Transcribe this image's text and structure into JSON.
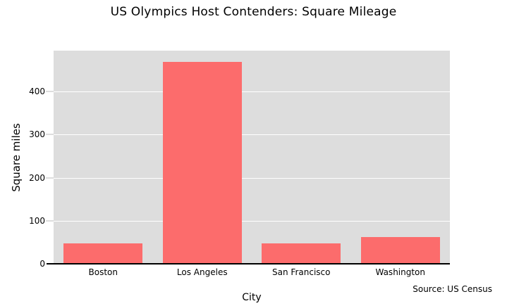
{
  "chart_data": {
    "type": "bar",
    "title": "US Olympics Host Contenders: Square Mileage",
    "categories": [
      "Boston",
      "Los Angeles",
      "San Francisco",
      "Washington"
    ],
    "values": [
      48,
      469,
      47,
      62
    ],
    "xlabel": "City",
    "ylabel": "Square miles",
    "yticks": [
      0,
      100,
      200,
      300,
      400
    ],
    "ylim": [
      0,
      495
    ],
    "source": "Source: US Census",
    "legend": false,
    "grid": true,
    "colors": {
      "bar": "#fc6c6c",
      "plot_background": "#dddddd",
      "gridline": "#ffffff",
      "axis_line": "#000000",
      "text": "#000000"
    }
  }
}
